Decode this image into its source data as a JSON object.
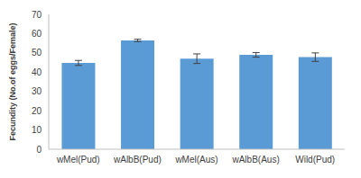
{
  "chart_data": {
    "type": "bar",
    "categories": [
      "wMel(Pud)",
      "wAlbB(Pud)",
      "wMel(Aus)",
      "wAlbB(Aus)",
      "Wild(Pud)"
    ],
    "values": [
      44.8,
      56.5,
      47.0,
      49.0,
      47.8
    ],
    "errors": [
      1.3,
      0.6,
      2.5,
      1.2,
      2.2
    ],
    "color": "#5b9bd5",
    "y_label": "Fecundity (No.of eggs/Female)",
    "ylim": [
      0,
      70
    ],
    "yticks": [
      0,
      10,
      20,
      30,
      40,
      50,
      60,
      70
    ],
    "grid": false
  }
}
